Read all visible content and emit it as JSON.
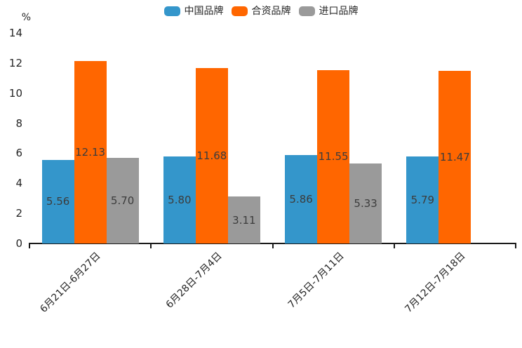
{
  "chart_data": {
    "type": "bar",
    "title": "",
    "ylabel": "%",
    "ylim": [
      0,
      14
    ],
    "yticks": [
      "0",
      "2",
      "4",
      "6",
      "8",
      "10",
      "12",
      "14"
    ],
    "grid": false,
    "legend_position": "top",
    "categories": [
      "6月21日-6月27日",
      "6月28日-7月4日",
      "7月5日-7月11日",
      "7月12日-7月18日"
    ],
    "series": [
      {
        "name": "中国品牌",
        "color": "#3496CB",
        "values": [
          5.56,
          5.8,
          5.86,
          5.79
        ],
        "value_labels": [
          "5.56",
          "5.80",
          "5.86",
          "5.79"
        ]
      },
      {
        "name": "合资品牌",
        "color": "#FF6600",
        "values": [
          12.13,
          11.68,
          11.55,
          11.47
        ],
        "value_labels": [
          "12.13",
          "11.68",
          "11.55",
          "11.47"
        ]
      },
      {
        "name": "进口品牌",
        "color": "#9A9A9A",
        "values": [
          5.7,
          3.11,
          5.33,
          null
        ],
        "value_labels": [
          "5.70",
          "3.11",
          "5.33",
          null
        ]
      }
    ]
  }
}
